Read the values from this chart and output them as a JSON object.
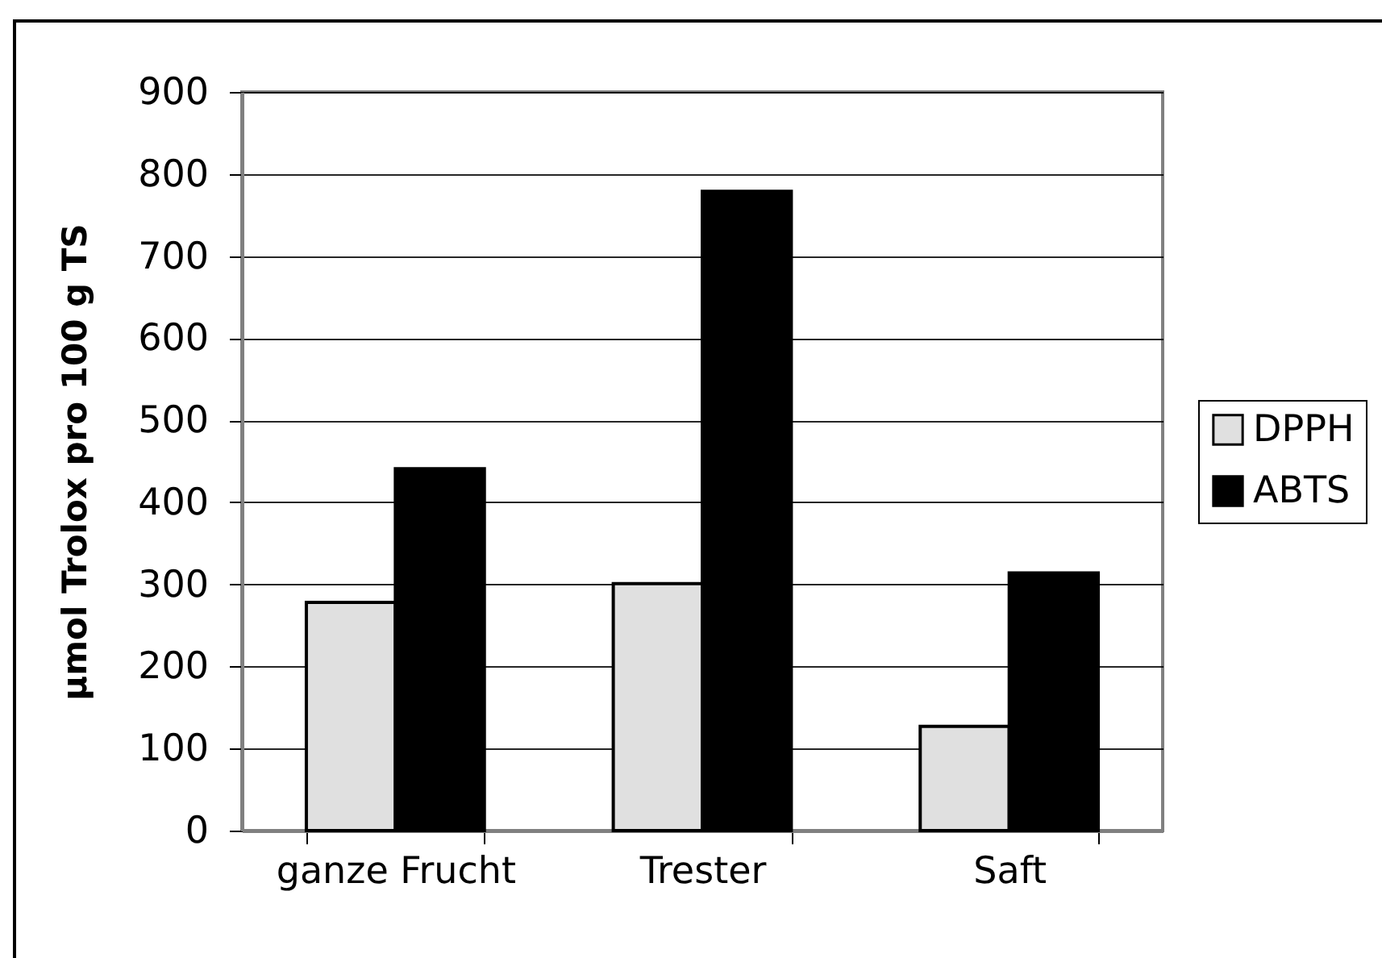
{
  "chart_data": {
    "type": "bar",
    "ylabel": "µmol Trolox pro 100 g TS",
    "categories": [
      "ganze Frucht",
      "Trester",
      "Saft"
    ],
    "series": [
      {
        "name": "DPPH",
        "color": "#e0e0e0",
        "values": [
          278,
          301,
          127
        ]
      },
      {
        "name": "ABTS",
        "color": "#000000",
        "values": [
          441,
          779,
          314
        ]
      }
    ],
    "ylim": [
      0,
      900
    ],
    "yticks": [
      0,
      100,
      200,
      300,
      400,
      500,
      600,
      700,
      800,
      900
    ],
    "grid": "y",
    "legend": "right"
  }
}
